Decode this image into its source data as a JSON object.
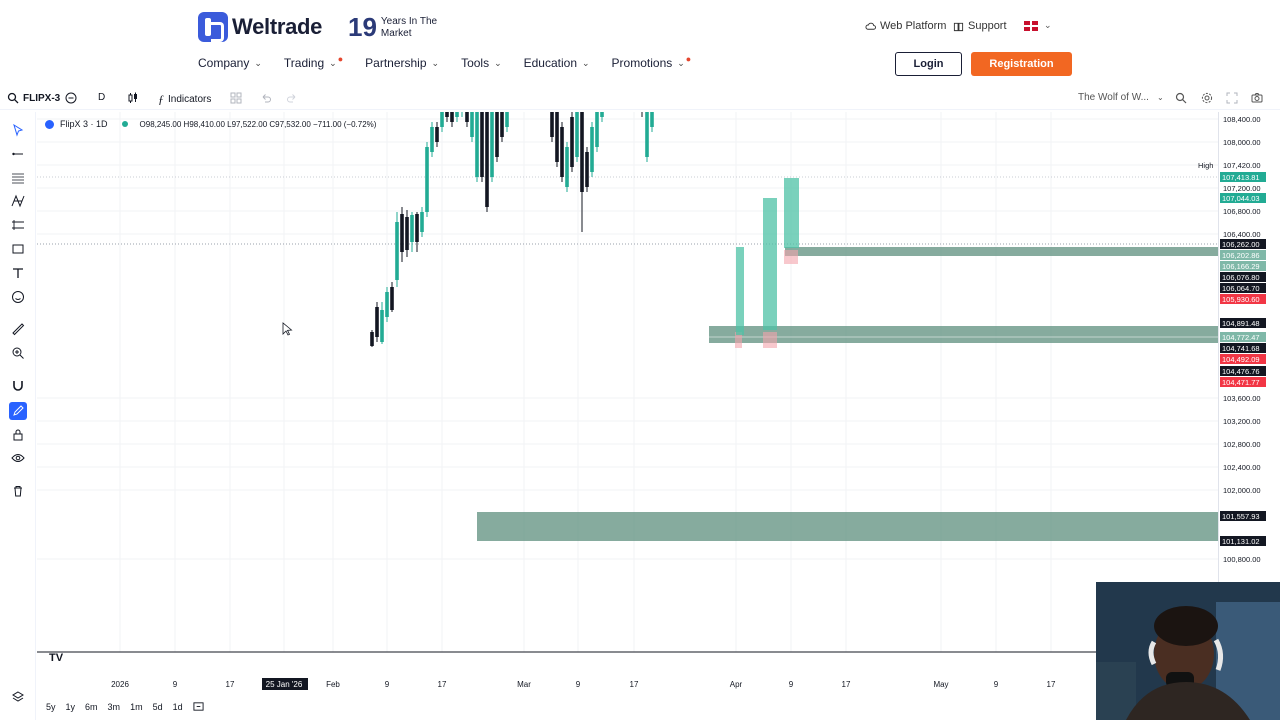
{
  "header": {
    "brand": "Weltrade",
    "years_number": "19",
    "years_text": "Years In The Market",
    "web_platform": "Web Platform",
    "support": "Support",
    "nav": [
      {
        "label": "Company",
        "dot": false
      },
      {
        "label": "Trading",
        "dot": true
      },
      {
        "label": "Partnership",
        "dot": false
      },
      {
        "label": "Tools",
        "dot": false
      },
      {
        "label": "Education",
        "dot": false
      },
      {
        "label": "Promotions",
        "dot": true
      }
    ],
    "login": "Login",
    "registration": "Registration"
  },
  "toolbar": {
    "symbol": "FLIPX-3",
    "interval": "D",
    "indicators": "Indicators",
    "layout_name": "The Wolf of W..."
  },
  "legend": {
    "title": "FlipX 3 · 1D",
    "ohlc": "O98,245.00  H98,410.00  L97,522.00  C97,532.00  −711.00 (−0.72%)"
  },
  "chart_data": {
    "type": "candlestick",
    "y_ticks": [
      "108,400.00",
      "108,000.00",
      "107,420.00",
      "107,200.00",
      "106,800.00",
      "106,400.00",
      "103,600.00",
      "103,200.00",
      "102,800.00",
      "102,400.00",
      "102,000.00",
      "100,800.00"
    ],
    "price_tags": [
      {
        "label": "107,413.81",
        "color": "#22ab94"
      },
      {
        "label": "107,044.03",
        "color": "#22ab94"
      },
      {
        "label": "106,262.00",
        "color": "#131722"
      },
      {
        "label": "106,202.86",
        "color": "#7fb8a8"
      },
      {
        "label": "106,166.29",
        "color": "#7fb8a8"
      },
      {
        "label": "106,076.80",
        "color": "#131722"
      },
      {
        "label": "106,064.70",
        "color": "#131722"
      },
      {
        "label": "105,930.60",
        "color": "#f23645"
      },
      {
        "label": "104,891.48",
        "color": "#131722"
      },
      {
        "label": "104,772.47",
        "color": "#7fb8a8"
      },
      {
        "label": "104,741.68",
        "color": "#131722"
      },
      {
        "label": "104,492.09",
        "color": "#f23645"
      },
      {
        "label": "104,476.76",
        "color": "#131722"
      },
      {
        "label": "104,471.77",
        "color": "#f23645"
      },
      {
        "label": "101,557.93",
        "color": "#131722"
      },
      {
        "label": "101,131.02",
        "color": "#131722"
      }
    ],
    "high_label": "High",
    "x_ticks": [
      "2026",
      "9",
      "17",
      "25 Jan '26",
      "Feb",
      "9",
      "17",
      "Mar",
      "9",
      "17",
      "Apr",
      "9",
      "17",
      "May",
      "9",
      "17"
    ],
    "zones": [
      {
        "name": "zone-101k",
        "from": 101131.02,
        "to": 101557.93
      },
      {
        "name": "zone-104k",
        "from": 104741.68,
        "to": 104891.48
      },
      {
        "name": "zone-106k",
        "from": 106166.29,
        "to": 106262.0
      }
    ]
  },
  "range_buttons": [
    "5y",
    "1y",
    "6m",
    "3m",
    "1m",
    "5d",
    "1d"
  ],
  "colors": {
    "accent": "#2962ff",
    "up": "#22ab94",
    "down": "#131722",
    "zone": "#6f9a8a",
    "brand_orange": "#f26722"
  }
}
